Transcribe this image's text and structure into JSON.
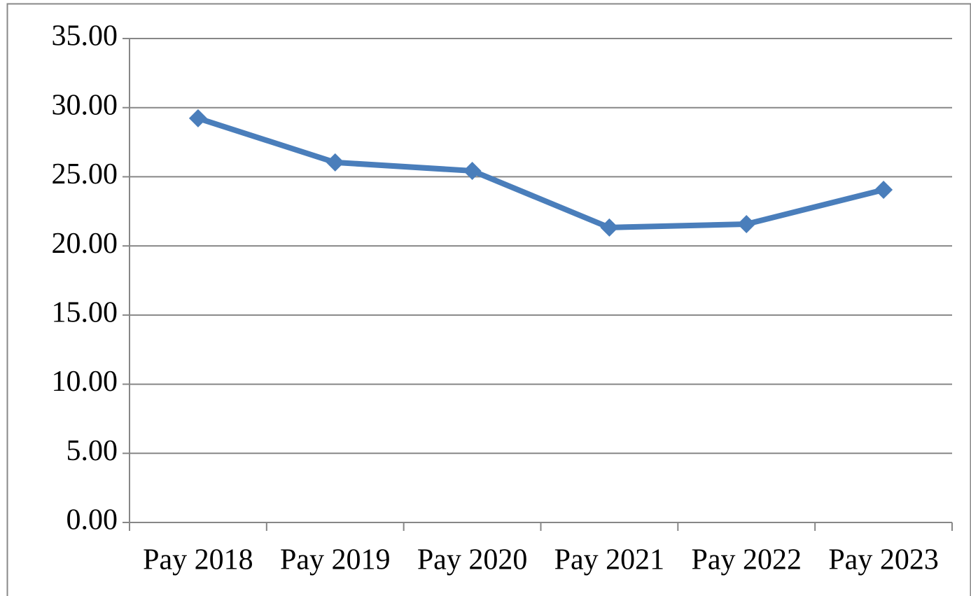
{
  "chart_data": {
    "type": "line",
    "categories": [
      "Pay 2018",
      "Pay 2019",
      "Pay 2020",
      "Pay 2021",
      "Pay 2022",
      "Pay 2023"
    ],
    "values": [
      29.23,
      26.04,
      25.43,
      21.33,
      21.58,
      24.06
    ],
    "color": "#4a7ebb",
    "ylim": [
      0,
      35
    ],
    "yticks": [
      {
        "value": 0,
        "label": "0.00"
      },
      {
        "value": 5,
        "label": "5.00"
      },
      {
        "value": 10,
        "label": "10.00"
      },
      {
        "value": 15,
        "label": "15.00"
      },
      {
        "value": 20,
        "label": "20.00"
      },
      {
        "value": 25,
        "label": "25.00"
      },
      {
        "value": 30,
        "label": "30.00"
      },
      {
        "value": 35,
        "label": "35.00"
      }
    ],
    "grid": true,
    "marker": "diamond"
  }
}
